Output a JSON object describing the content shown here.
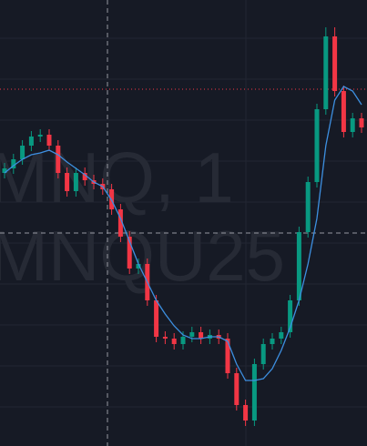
{
  "chart_data": {
    "type": "candlestick",
    "watermark": [
      "MNQ, 1",
      "MNQU25"
    ],
    "ylim": [
      0,
      490
    ],
    "categories": [
      null,
      null,
      null,
      null,
      null,
      null,
      null,
      null,
      null,
      null,
      null,
      null,
      null,
      null,
      null,
      null,
      null,
      null,
      null,
      null,
      null,
      null,
      null,
      null,
      null,
      null,
      null,
      null,
      null,
      null,
      null,
      null,
      null,
      null,
      null,
      null,
      null,
      null,
      null,
      null,
      null
    ],
    "open": [
      300,
      305,
      315,
      330,
      340,
      342,
      330,
      300,
      280,
      300,
      292,
      288,
      282,
      260,
      230,
      195,
      200,
      160,
      120,
      118,
      112,
      120,
      125,
      118,
      122,
      118,
      80,
      45,
      28,
      90,
      112,
      118,
      125,
      160,
      235,
      290,
      370,
      450,
      390,
      345,
      360
    ],
    "high": [
      311,
      321,
      336,
      346,
      348,
      348,
      336,
      306,
      306,
      306,
      298,
      294,
      288,
      266,
      236,
      206,
      206,
      166,
      126,
      124,
      126,
      131,
      131,
      128,
      128,
      124,
      86,
      51,
      96,
      118,
      124,
      131,
      166,
      241,
      296,
      376,
      460,
      460,
      396,
      366,
      366
    ],
    "low": [
      294,
      299,
      309,
      324,
      334,
      324,
      294,
      274,
      274,
      286,
      282,
      276,
      254,
      224,
      189,
      189,
      154,
      114,
      112,
      106,
      106,
      114,
      112,
      112,
      112,
      74,
      39,
      22,
      22,
      84,
      106,
      112,
      119,
      154,
      229,
      284,
      364,
      384,
      339,
      339,
      344
    ],
    "close": [
      305,
      315,
      330,
      340,
      342,
      330,
      300,
      280,
      300,
      292,
      288,
      282,
      260,
      230,
      195,
      200,
      160,
      120,
      118,
      112,
      120,
      125,
      118,
      122,
      118,
      80,
      45,
      28,
      90,
      112,
      118,
      125,
      160,
      235,
      290,
      370,
      450,
      390,
      345,
      360,
      350
    ],
    "up_color": "#089981",
    "down_color": "#f23645",
    "series": [
      {
        "color": "#3d8fe0",
        "values": [
          300,
          308,
          315,
          320,
          322,
          325,
          320,
          312,
          305,
          298,
          290,
          285,
          270,
          250,
          225,
          200,
          180,
          160,
          145,
          132,
          122,
          118,
          118,
          120,
          120,
          115,
          90,
          72,
          72,
          74,
          85,
          105,
          130,
          160,
          200,
          250,
          330,
          380,
          395,
          390,
          375
        ]
      }
    ]
  }
}
